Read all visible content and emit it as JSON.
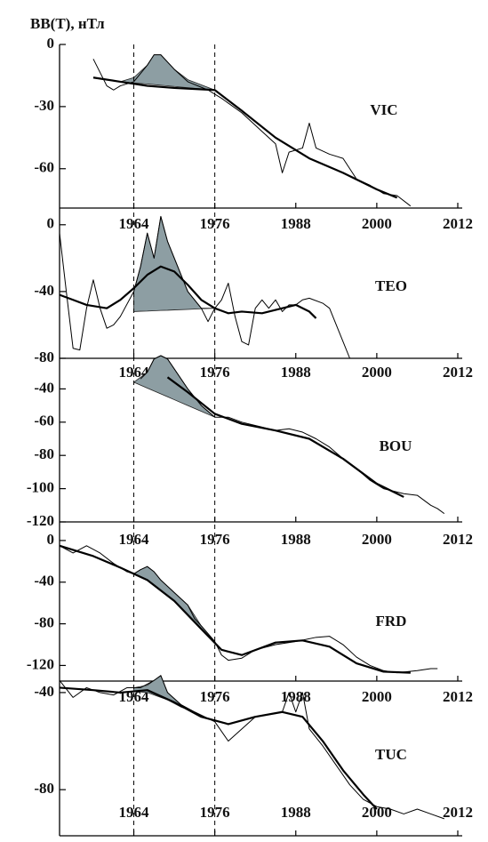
{
  "chart_data": [
    {
      "type": "line",
      "ylabel": "BB(T), нТл",
      "label": "VIC",
      "xlim": [
        1953,
        2012
      ],
      "xticks": [
        1964,
        1976,
        1988,
        2000,
        2012
      ],
      "ylim": [
        -79,
        0
      ],
      "yticks": [
        0,
        -30,
        -60
      ],
      "series": [
        {
          "color": "#000000",
          "width": 1,
          "x": [
            1958,
            1960,
            1961,
            1962,
            1964,
            1966,
            1967,
            1968,
            1970,
            1972,
            1975,
            1977,
            1980,
            1983,
            1985,
            1986,
            1987,
            1989,
            1990,
            1991,
            1993,
            1995,
            1997,
            1999,
            2001,
            2003,
            2005
          ],
          "values": [
            -7,
            -20,
            -22,
            -20,
            -18,
            -10,
            -5,
            -5,
            -12,
            -18,
            -22,
            -26,
            -33,
            -42,
            -48,
            -62,
            -52,
            -50,
            -38,
            -50,
            -53,
            -55,
            -65,
            -68,
            -72,
            -73,
            -78
          ]
        },
        {
          "color": "#000000",
          "width": 2.2,
          "x": [
            1958,
            1962,
            1966,
            1970,
            1976,
            1980,
            1985,
            1990,
            1995,
            2000,
            2003
          ],
          "values": [
            -16,
            -18,
            -20,
            -21,
            -22,
            -32,
            -45,
            -55,
            -62,
            -70,
            -74
          ]
        }
      ],
      "shade": {
        "color": "#8d9ea3",
        "x": [
          1962,
          1964,
          1966,
          1967,
          1968,
          1970,
          1972,
          1976
        ],
        "upper": [
          -18,
          -16,
          -10,
          -5,
          -5,
          -12,
          -17,
          -22
        ],
        "lower": [
          -18,
          -18.6,
          -19.1,
          -19.4,
          -19.7,
          -20.3,
          -20.9,
          -22
        ]
      }
    },
    {
      "type": "line",
      "label": "TEO",
      "xlim": [
        1953,
        2012
      ],
      "xticks": [
        1964,
        1976,
        1988,
        2000,
        2012
      ],
      "ylim": [
        -80,
        10
      ],
      "yticks": [
        0,
        -40,
        -80
      ],
      "series": [
        {
          "color": "#000000",
          "width": 1,
          "x": [
            1953,
            1954,
            1955,
            1956,
            1957,
            1958,
            1959,
            1960,
            1961,
            1962,
            1964,
            1965,
            1966,
            1967,
            1968,
            1969,
            1970,
            1972,
            1974,
            1975,
            1976,
            1977,
            1978,
            1979,
            1980,
            1981,
            1982,
            1983,
            1984,
            1985,
            1986,
            1987,
            1988,
            1989,
            1990,
            1992,
            1993,
            1994,
            1995,
            1996
          ],
          "values": [
            -5,
            -40,
            -74,
            -75,
            -50,
            -33,
            -50,
            -62,
            -60,
            -55,
            -40,
            -25,
            -5,
            -20,
            5,
            -10,
            -20,
            -40,
            -50,
            -58,
            -50,
            -45,
            -35,
            -55,
            -70,
            -72,
            -50,
            -45,
            -50,
            -45,
            -52,
            -48,
            -48,
            -45,
            -44,
            -47,
            -50,
            -60,
            -70,
            -80
          ]
        },
        {
          "color": "#000000",
          "width": 2.2,
          "x": [
            1953,
            1955,
            1957,
            1960,
            1962,
            1964,
            1966,
            1968,
            1970,
            1972,
            1974,
            1976,
            1978,
            1980,
            1983,
            1986,
            1988,
            1990,
            1991
          ],
          "values": [
            -42,
            -45,
            -48,
            -50,
            -45,
            -38,
            -30,
            -25,
            -28,
            -36,
            -45,
            -50,
            -53,
            -52,
            -53,
            -50,
            -48,
            -52,
            -56
          ]
        }
      ],
      "shade": {
        "color": "#8d9ea3",
        "x": [
          1964,
          1965,
          1966,
          1967,
          1968,
          1969,
          1970,
          1972,
          1974,
          1976
        ],
        "upper": [
          -40,
          -25,
          -5,
          -20,
          5,
          -10,
          -20,
          -40,
          -50,
          -50
        ],
        "lower": [
          -52,
          -51.8,
          -51.7,
          -51.5,
          -51.3,
          -51.2,
          -51,
          -50.7,
          -50.3,
          -50
        ]
      }
    },
    {
      "type": "line",
      "label": "BOU",
      "xlim": [
        1953,
        2012
      ],
      "xticks": [
        1964,
        1976,
        1988,
        2000,
        2012
      ],
      "ylim": [
        -120,
        -20
      ],
      "yticks": [
        -40,
        -60,
        -80,
        -100,
        -120
      ],
      "series": [
        {
          "color": "#000000",
          "width": 1,
          "x": [
            1965,
            1966,
            1967,
            1968,
            1969,
            1970,
            1972,
            1974,
            1976,
            1978,
            1980,
            1983,
            1985,
            1987,
            1989,
            1991,
            1993,
            1995,
            1997,
            1999,
            2001,
            2003,
            2004,
            2006,
            2008,
            2009,
            2010
          ],
          "values": [
            -34,
            -30,
            -22,
            -20,
            -22,
            -28,
            -40,
            -50,
            -57,
            -57,
            -60,
            -63,
            -65,
            -64,
            -66,
            -70,
            -75,
            -82,
            -88,
            -95,
            -100,
            -102,
            -103,
            -104,
            -110,
            -112,
            -115
          ]
        },
        {
          "color": "#000000",
          "width": 2.2,
          "x": [
            1969,
            1972,
            1976,
            1980,
            1985,
            1990,
            1995,
            2000,
            2004
          ],
          "values": [
            -33,
            -42,
            -55,
            -61,
            -65,
            -70,
            -82,
            -97,
            -105
          ]
        }
      ],
      "shade": {
        "color": "#8d9ea3",
        "x": [
          1964,
          1966,
          1967,
          1968,
          1969,
          1970,
          1972,
          1974,
          1976
        ],
        "upper": [
          -36,
          -30,
          -22,
          -20,
          -22,
          -28,
          -40,
          -50,
          -57
        ],
        "lower": [
          -36,
          -39.5,
          -41.25,
          -43,
          -44.75,
          -46.5,
          -50,
          -53.5,
          -57
        ]
      }
    },
    {
      "type": "line",
      "label": "FRD",
      "xlim": [
        1953,
        2012
      ],
      "xticks": [
        1964,
        1976,
        1988,
        2000,
        2012
      ],
      "ylim": [
        -135,
        17
      ],
      "yticks": [
        0,
        -40,
        -80,
        -120
      ],
      "series": [
        {
          "color": "#000000",
          "width": 1,
          "x": [
            1953,
            1955,
            1957,
            1959,
            1961,
            1963,
            1964,
            1965,
            1966,
            1967,
            1968,
            1970,
            1972,
            1973,
            1974,
            1976,
            1977,
            1978,
            1980,
            1982,
            1985,
            1988,
            1991,
            1993,
            1995,
            1997,
            1999,
            2001,
            2003,
            2006,
            2008,
            2009
          ],
          "values": [
            -5,
            -12,
            -5,
            -12,
            -22,
            -30,
            -32,
            -28,
            -25,
            -30,
            -38,
            -50,
            -62,
            -75,
            -82,
            -97,
            -110,
            -115,
            -113,
            -105,
            -100,
            -97,
            -93,
            -92,
            -100,
            -112,
            -120,
            -125,
            -127,
            -125,
            -123,
            -123
          ]
        },
        {
          "color": "#000000",
          "width": 2.2,
          "x": [
            1953,
            1958,
            1962,
            1964,
            1966,
            1970,
            1974,
            1977,
            1980,
            1985,
            1989,
            1993,
            1997,
            2001,
            2005
          ],
          "values": [
            -5,
            -15,
            -26,
            -32,
            -38,
            -58,
            -85,
            -105,
            -110,
            -98,
            -96,
            -102,
            -118,
            -126,
            -127
          ]
        }
      ],
      "shade": {
        "color": "#8d9ea3",
        "x": [
          1964,
          1965,
          1966,
          1967,
          1968,
          1970,
          1972,
          1974,
          1976
        ],
        "upper": [
          -32,
          -28,
          -25,
          -30,
          -38,
          -50,
          -62,
          -82,
          -97
        ],
        "lower": [
          -32,
          -35,
          -38,
          -43,
          -48,
          -58,
          -72,
          -85,
          -98
        ]
      }
    },
    {
      "type": "line",
      "label": "TUC",
      "xlim": [
        1953,
        2012
      ],
      "xticks": [
        1964,
        1976,
        1988,
        2000,
        2012
      ],
      "ylim": [
        -99,
        -36
      ],
      "yticks": [
        -40,
        -80
      ],
      "series": [
        {
          "color": "#000000",
          "width": 1,
          "x": [
            1953,
            1955,
            1957,
            1959,
            1961,
            1963,
            1965,
            1967,
            1968,
            1969,
            1971,
            1973,
            1976,
            1978,
            1980,
            1982,
            1984,
            1986,
            1987,
            1988,
            1989,
            1990,
            1992,
            1994,
            1996,
            1998,
            2000,
            2002,
            2004,
            2006,
            2008,
            2010
          ],
          "values": [
            -35,
            -42,
            -38,
            -40,
            -41,
            -38,
            -38,
            -35,
            -33,
            -40,
            -45,
            -48,
            -52,
            -60,
            -55,
            -50,
            -49,
            -48,
            -40,
            -48,
            -40,
            -55,
            -62,
            -70,
            -78,
            -84,
            -87,
            -88,
            -90,
            -88,
            -90,
            -92
          ]
        },
        {
          "color": "#000000",
          "width": 2.2,
          "x": [
            1953,
            1958,
            1962,
            1966,
            1970,
            1974,
            1978,
            1982,
            1986,
            1989,
            1992,
            1995,
            1998,
            2000
          ],
          "values": [
            -38,
            -39,
            -40,
            -39,
            -44,
            -50,
            -53,
            -50,
            -48,
            -50,
            -60,
            -72,
            -82,
            -88
          ]
        }
      ],
      "shade": {
        "color": "#8d9ea3",
        "x": [
          1964,
          1966,
          1968,
          1969,
          1971,
          1973,
          1976
        ],
        "upper": [
          -38,
          -37,
          -33,
          -40,
          -45,
          -48,
          -52
        ],
        "lower": [
          -39.5,
          -40,
          -42,
          -43,
          -46,
          -48,
          -52
        ]
      }
    }
  ]
}
